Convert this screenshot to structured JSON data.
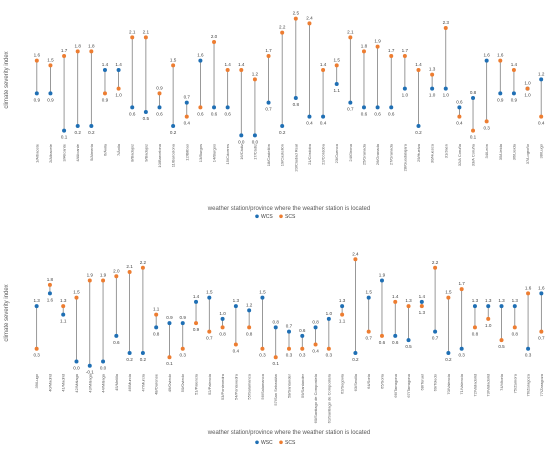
{
  "chart_data": [
    {
      "type": "dumbbell",
      "ylabel": "climate severity index",
      "xlabel": "weather station/province  where the weather station is located",
      "categories": [
        "1/Albacete",
        "2/Albacete",
        "3/Alicante",
        "4/Alicante",
        "5/Almeria",
        "6/Ávila",
        "7/Ávila",
        "8/Badajoz",
        "9/Badajoz",
        "10/Barcelona",
        "11/Barcelona",
        "12/Bilbao",
        "13/Burgos",
        "14/Burgos",
        "15/Cáceres",
        "16/Cádiz",
        "17/Cádiz",
        "18/Castellón",
        "19/Castellón",
        "20/Ciudad Real",
        "21/Córdoba",
        "22/Córdoba",
        "23/Cuenca",
        "24/Girona",
        "25/Granada",
        "26/Granada",
        "27/Granada",
        "28/Guadalajara",
        "29/Huelva",
        "30/Huesca",
        "31/Jaén",
        "32/A Coruña",
        "33/A Coruña",
        "34/León",
        "35/Lleida",
        "36/Lleida",
        "37/Logroño",
        "38/Lugo"
      ],
      "series": [
        {
          "name": "WCS",
          "color": "#1f6fb4",
          "values": [
            0.9,
            0.9,
            0.1,
            0.2,
            0.2,
            1.4,
            1.4,
            0.6,
            0.5,
            0.6,
            0.2,
            0.7,
            1.6,
            0.6,
            0.6,
            0.0,
            0.0,
            0.7,
            0.2,
            0.8,
            0.4,
            0.4,
            1.1,
            0.7,
            0.6,
            0.6,
            0.6,
            1.0,
            0.2,
            1.0,
            1.0,
            0.6,
            0.8,
            1.6,
            0.9,
            0.9,
            1.0,
            1.2
          ]
        },
        {
          "name": "SCS",
          "color": "#ed7d31",
          "values": [
            1.6,
            1.5,
            1.7,
            1.8,
            1.8,
            0.9,
            1.0,
            2.1,
            2.1,
            0.9,
            1.5,
            0.4,
            0.6,
            2.0,
            1.4,
            1.4,
            1.2,
            1.7,
            2.2,
            2.5,
            2.4,
            1.4,
            1.5,
            2.1,
            1.8,
            1.9,
            1.7,
            1.7,
            1.4,
            1.3,
            2.3,
            0.4,
            0.1,
            0.3,
            1.6,
            1.4,
            1.0,
            0.4
          ]
        }
      ],
      "value_labels": {
        "WCS": [
          "0.9",
          "0.9",
          "0.1",
          "0.2",
          "0.2",
          "1.4",
          "1.4",
          "0.6",
          "0.5",
          "0.6",
          "0.2",
          "0.7",
          "1.6",
          "0.6",
          "0.6",
          "0.0",
          "0.0",
          "0.7",
          "0.2",
          "0.8",
          "0.4",
          "0.4",
          "1.1",
          "0.7",
          "0.6",
          "0.6",
          "0.6",
          "1.0",
          "0.2",
          "1.0",
          "1.0",
          "0.6",
          "0.8",
          "1.6",
          "0.9",
          "0.9",
          "1.0",
          "1.2"
        ],
        "SCS": [
          "1.6",
          "1.5",
          "1.7",
          "1.8",
          "1.8",
          "0.9",
          "1.0",
          "2.1",
          "2.1",
          "0.9",
          "1.5",
          "0.4",
          "0.6",
          "2.0",
          "1.4",
          "1.4",
          "1.2",
          "1.7",
          "2.2",
          "2.5",
          "2.4",
          "1.4",
          "1.5",
          "2.1",
          "1.8",
          "1.9",
          "1.7",
          "1.7",
          "1.4",
          "1.3",
          "2.3",
          "0.4",
          "0.1",
          "0.3",
          "1.6",
          "1.4",
          "1.0",
          "0.4"
        ]
      },
      "ylim": [
        -0.1,
        2.6
      ],
      "grid": false,
      "legend": "bottom-center"
    },
    {
      "type": "dumbbell",
      "ylabel": "climate severity index",
      "xlabel": "weather station/province  where the weather station is located",
      "categories": [
        "39/Lugo",
        "40/Madrid",
        "41/Madrid",
        "42/Málaga",
        "43/Málaga",
        "44/Málaga",
        "45/Melilla",
        "46/Murcia",
        "47/Murcia",
        "48/Ourense",
        "49/Oviedo",
        "50/Oviedo",
        "51/Palencia",
        "52/Palencia",
        "53/Pontevedra",
        "54/Pontevedra",
        "55/Salamanca",
        "56/Salamanca",
        "57/San Sebastián",
        "58/Santander",
        "59/Santander",
        "60/Santiago de Compostela",
        "61/Santiago de Compostela",
        "62/Segovia",
        "63/Sevilla",
        "64/Soria",
        "65/Soria",
        "66/Tarragona",
        "67/Tarragona",
        "68/Teruel",
        "69/Toledo",
        "70/Valencia",
        "71/Valencia",
        "72/Valladolid",
        "73/Valladolid",
        "74/Vitoria",
        "75/Zamora",
        "76/Zaragoza",
        "77/Zaragoza"
      ],
      "series": [
        {
          "name": "WSC",
          "color": "#1f6fb4",
          "values": [
            1.3,
            1.6,
            1.1,
            0.0,
            -0.1,
            0.0,
            0.6,
            0.2,
            0.2,
            0.8,
            0.9,
            0.9,
            1.4,
            1.5,
            1.0,
            1.3,
            1.2,
            1.5,
            0.8,
            0.7,
            0.6,
            0.8,
            1.0,
            1.3,
            0.2,
            1.5,
            1.9,
            0.6,
            0.5,
            1.4,
            0.7,
            0.2,
            0.3,
            1.3,
            1.3,
            1.3,
            1.3,
            0.3,
            1.6
          ]
        },
        {
          "name": "SCS",
          "color": "#ed7d31",
          "values": [
            0.3,
            1.8,
            1.3,
            1.5,
            1.9,
            1.9,
            2.0,
            2.1,
            2.2,
            1.1,
            0.1,
            0.3,
            0.9,
            0.7,
            0.8,
            0.4,
            0.8,
            0.3,
            0.1,
            0.3,
            0.3,
            0.4,
            0.3,
            1.1,
            2.4,
            0.7,
            0.6,
            1.4,
            1.3,
            1.3,
            2.2,
            1.5,
            1.7,
            0.8,
            1.0,
            0.5,
            0.8,
            1.6,
            0.7
          ]
        }
      ],
      "value_labels": {
        "WSC": [
          "1.3",
          "1.6",
          "1.1",
          "0.0",
          "-0.1",
          "0.0",
          "0.6",
          "0.2",
          "0.2",
          "0.8",
          "0.9",
          "0.9",
          "1.4",
          "1.5",
          "1.0",
          "1.3",
          "1.2",
          "1.5",
          "0.8",
          "0.7",
          "0.6",
          "0.8",
          "1.0",
          "1.3",
          "0.2",
          "1.5",
          "1.9",
          "0.6",
          "0.5",
          "1.4",
          "0.7",
          "0.2",
          "0.3",
          "1.3",
          "1.3",
          "1.3",
          "1.3",
          "0.3",
          "1.6"
        ],
        "SCS": [
          "0.3",
          "1.8",
          "1.3",
          "1.5",
          "1.9",
          "1.9",
          "2.0",
          "2.1",
          "2.2",
          "1.1",
          "0.1",
          "0.3",
          "0.9",
          "0.7",
          "0.8",
          "0.4",
          "0.8",
          "0.3",
          "0.1",
          "0.3",
          "0.3",
          "0.4",
          "0.3",
          "1.1",
          "2.4",
          "0.7",
          "0.6",
          "1.4",
          "1.3",
          "1.3",
          "2.2",
          "1.5",
          "1.7",
          "0.8",
          "1.0",
          "0.5",
          "0.8",
          "1.6",
          "0.7"
        ]
      },
      "ylim": [
        -0.2,
        2.5
      ],
      "grid": false,
      "legend": "bottom-center"
    }
  ]
}
